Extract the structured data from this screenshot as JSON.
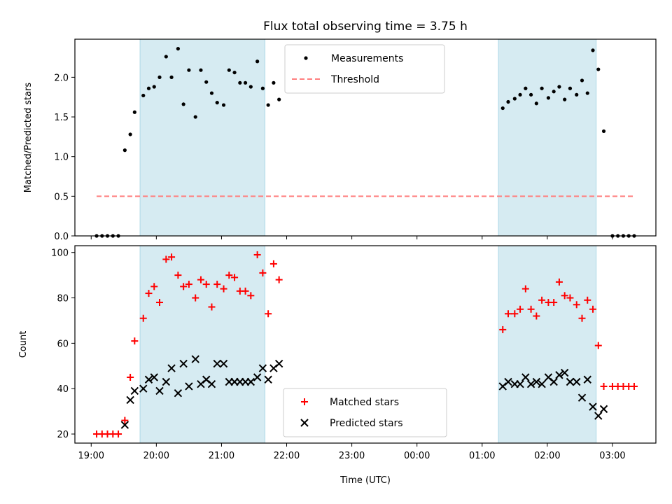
{
  "figure": {
    "title": "Flux total observing time = 3.75 h",
    "xlabel": "Time (UTC)"
  },
  "colors": {
    "span": "#add8e6",
    "threshold": "#ff7f7f",
    "matched": "#ff0000",
    "predicted": "#000000",
    "measurement": "#000000"
  },
  "chart_data": [
    {
      "type": "scatter",
      "title": "Flux total observing time = 3.75 h",
      "xlabel": "",
      "ylabel": "Matched/Predicted stars",
      "xlim": [
        "18:45",
        "27:40"
      ],
      "ylim": [
        0,
        2.48
      ],
      "x_ticks": [
        "19:00",
        "20:00",
        "21:00",
        "22:00",
        "23:00",
        "00:00",
        "01:00",
        "02:00",
        "03:00"
      ],
      "y_ticks": [
        "0.0",
        "0.5",
        "1.0",
        "1.5",
        "2.0"
      ],
      "legend": {
        "position": "top-center",
        "entries": [
          "Measurements",
          "Threshold"
        ]
      },
      "spans": [
        [
          "19:45",
          "21:40"
        ],
        [
          "25:15",
          "26:45"
        ]
      ],
      "threshold": {
        "value": 0.5,
        "x": [
          "19:05",
          "27:20"
        ]
      },
      "series": [
        {
          "name": "Measurements",
          "marker": "dot",
          "points": [
            [
              "19:05",
              0
            ],
            [
              "19:10",
              0
            ],
            [
              "19:15",
              0
            ],
            [
              "19:20",
              0
            ],
            [
              "19:25",
              0
            ],
            [
              "19:31",
              1.08
            ],
            [
              "19:36",
              1.28
            ],
            [
              "19:40",
              1.56
            ],
            [
              "19:48",
              1.77
            ],
            [
              "19:53",
              1.86
            ],
            [
              "19:58",
              1.88
            ],
            [
              "20:03",
              2.0
            ],
            [
              "20:09",
              2.26
            ],
            [
              "20:14",
              2.0
            ],
            [
              "20:20",
              2.36
            ],
            [
              "20:25",
              1.66
            ],
            [
              "20:30",
              2.09
            ],
            [
              "20:36",
              1.5
            ],
            [
              "20:41",
              2.09
            ],
            [
              "20:46",
              1.94
            ],
            [
              "20:51",
              1.8
            ],
            [
              "20:56",
              1.68
            ],
            [
              "21:02",
              1.65
            ],
            [
              "21:07",
              2.09
            ],
            [
              "21:12",
              2.06
            ],
            [
              "21:17",
              1.93
            ],
            [
              "21:22",
              1.93
            ],
            [
              "21:27",
              1.88
            ],
            [
              "21:33",
              2.2
            ],
            [
              "21:38",
              1.86
            ],
            [
              "21:43",
              1.65
            ],
            [
              "21:48",
              1.93
            ],
            [
              "21:53",
              1.72
            ],
            [
              "25:19",
              1.61
            ],
            [
              "25:24",
              1.69
            ],
            [
              "25:30",
              1.73
            ],
            [
              "25:35",
              1.78
            ],
            [
              "25:40",
              1.86
            ],
            [
              "25:45",
              1.78
            ],
            [
              "25:50",
              1.67
            ],
            [
              "25:55",
              1.86
            ],
            [
              "26:01",
              1.74
            ],
            [
              "26:06",
              1.82
            ],
            [
              "26:11",
              1.88
            ],
            [
              "26:16",
              1.72
            ],
            [
              "26:21",
              1.86
            ],
            [
              "26:27",
              1.78
            ],
            [
              "26:32",
              1.96
            ],
            [
              "26:37",
              1.8
            ],
            [
              "26:42",
              2.34
            ],
            [
              "26:47",
              2.1
            ],
            [
              "26:52",
              1.32
            ],
            [
              "27:00",
              0
            ],
            [
              "27:05",
              0
            ],
            [
              "27:10",
              0
            ],
            [
              "27:15",
              0
            ],
            [
              "27:20",
              0
            ]
          ]
        }
      ]
    },
    {
      "type": "scatter",
      "title": "",
      "xlabel": "Time (UTC)",
      "ylabel": "Count",
      "xlim": [
        "18:45",
        "27:40"
      ],
      "ylim": [
        16,
        103
      ],
      "x_ticks": [
        "19:00",
        "20:00",
        "21:00",
        "22:00",
        "23:00",
        "00:00",
        "01:00",
        "02:00",
        "03:00"
      ],
      "y_ticks": [
        "20",
        "40",
        "60",
        "80",
        "100"
      ],
      "legend": {
        "position": "bottom-center",
        "entries": [
          "Matched stars",
          "Predicted stars"
        ]
      },
      "spans": [
        [
          "19:45",
          "21:40"
        ],
        [
          "25:15",
          "26:45"
        ]
      ],
      "series": [
        {
          "name": "Matched stars",
          "marker": "plus",
          "points": [
            [
              "19:05",
              20
            ],
            [
              "19:10",
              20
            ],
            [
              "19:15",
              20
            ],
            [
              "19:20",
              20
            ],
            [
              "19:25",
              20
            ],
            [
              "19:31",
              26
            ],
            [
              "19:36",
              45
            ],
            [
              "19:40",
              61
            ],
            [
              "19:48",
              71
            ],
            [
              "19:53",
              82
            ],
            [
              "19:58",
              85
            ],
            [
              "20:03",
              78
            ],
            [
              "20:09",
              97
            ],
            [
              "20:14",
              98
            ],
            [
              "20:20",
              90
            ],
            [
              "20:25",
              85
            ],
            [
              "20:30",
              86
            ],
            [
              "20:36",
              80
            ],
            [
              "20:41",
              88
            ],
            [
              "20:46",
              86
            ],
            [
              "20:51",
              76
            ],
            [
              "20:56",
              86
            ],
            [
              "21:02",
              84
            ],
            [
              "21:07",
              90
            ],
            [
              "21:12",
              89
            ],
            [
              "21:17",
              83
            ],
            [
              "21:22",
              83
            ],
            [
              "21:27",
              81
            ],
            [
              "21:33",
              99
            ],
            [
              "21:38",
              91
            ],
            [
              "21:43",
              73
            ],
            [
              "21:48",
              95
            ],
            [
              "21:53",
              88
            ],
            [
              "25:19",
              66
            ],
            [
              "25:24",
              73
            ],
            [
              "25:30",
              73
            ],
            [
              "25:35",
              75
            ],
            [
              "25:40",
              84
            ],
            [
              "25:45",
              75
            ],
            [
              "25:50",
              72
            ],
            [
              "25:55",
              79
            ],
            [
              "26:01",
              78
            ],
            [
              "26:06",
              78
            ],
            [
              "26:11",
              87
            ],
            [
              "26:16",
              81
            ],
            [
              "26:21",
              80
            ],
            [
              "26:27",
              77
            ],
            [
              "26:32",
              71
            ],
            [
              "26:37",
              79
            ],
            [
              "26:42",
              75
            ],
            [
              "26:47",
              59
            ],
            [
              "26:52",
              41
            ],
            [
              "27:00",
              41
            ],
            [
              "27:05",
              41
            ],
            [
              "27:10",
              41
            ],
            [
              "27:15",
              41
            ],
            [
              "27:20",
              41
            ]
          ]
        },
        {
          "name": "Predicted stars",
          "marker": "x",
          "points": [
            [
              "19:31",
              24
            ],
            [
              "19:36",
              35
            ],
            [
              "19:40",
              39
            ],
            [
              "19:48",
              40
            ],
            [
              "19:53",
              44
            ],
            [
              "19:58",
              45
            ],
            [
              "20:03",
              39
            ],
            [
              "20:09",
              43
            ],
            [
              "20:14",
              49
            ],
            [
              "20:20",
              38
            ],
            [
              "20:25",
              51
            ],
            [
              "20:30",
              41
            ],
            [
              "20:36",
              53
            ],
            [
              "20:41",
              42
            ],
            [
              "20:46",
              44
            ],
            [
              "20:51",
              42
            ],
            [
              "20:56",
              51
            ],
            [
              "21:02",
              51
            ],
            [
              "21:07",
              43
            ],
            [
              "21:12",
              43
            ],
            [
              "21:17",
              43
            ],
            [
              "21:22",
              43
            ],
            [
              "21:27",
              43
            ],
            [
              "21:33",
              45
            ],
            [
              "21:38",
              49
            ],
            [
              "21:43",
              44
            ],
            [
              "21:48",
              49
            ],
            [
              "21:53",
              51
            ],
            [
              "25:19",
              41
            ],
            [
              "25:24",
              43
            ],
            [
              "25:30",
              42
            ],
            [
              "25:35",
              42
            ],
            [
              "25:40",
              45
            ],
            [
              "25:45",
              42
            ],
            [
              "25:50",
              43
            ],
            [
              "25:55",
              42
            ],
            [
              "26:01",
              45
            ],
            [
              "26:06",
              43
            ],
            [
              "26:11",
              46
            ],
            [
              "26:16",
              47
            ],
            [
              "26:21",
              43
            ],
            [
              "26:27",
              43
            ],
            [
              "26:32",
              36
            ],
            [
              "26:37",
              44
            ],
            [
              "26:42",
              32
            ],
            [
              "26:47",
              28
            ],
            [
              "26:52",
              31
            ]
          ]
        }
      ]
    }
  ]
}
